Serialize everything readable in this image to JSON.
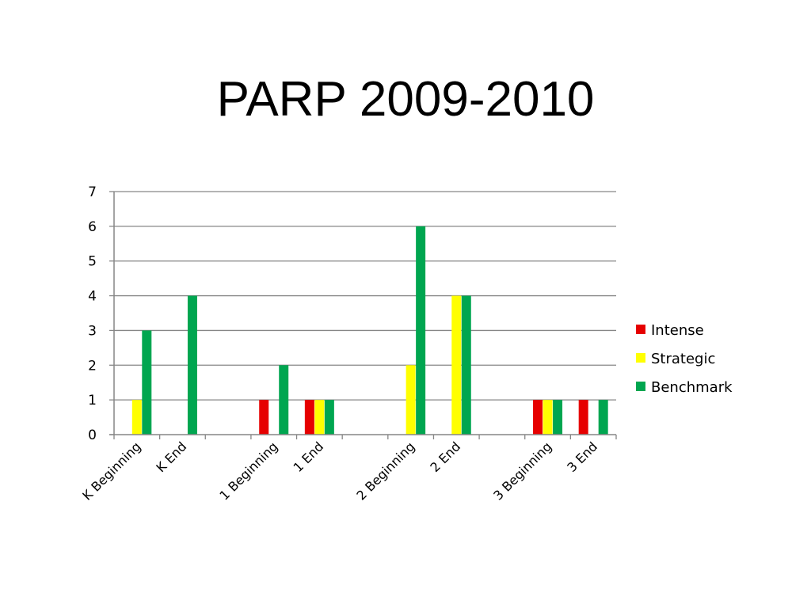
{
  "slide": {
    "title": "PARP 2009-2010"
  },
  "chart_data": {
    "type": "bar",
    "categories": [
      "K Beginning",
      "K End",
      "",
      "1 Beginning",
      "1 End",
      "",
      "2 Beginning",
      "2 End",
      "",
      "3 Beginning",
      "3 End"
    ],
    "series": [
      {
        "name": "Intense",
        "color": "#e60000",
        "values": [
          0,
          0,
          0,
          1,
          1,
          0,
          0,
          0,
          0,
          1,
          1
        ]
      },
      {
        "name": "Strategic",
        "color": "#ffff00",
        "values": [
          1,
          0,
          0,
          0,
          1,
          0,
          2,
          4,
          0,
          1,
          0
        ]
      },
      {
        "name": "Benchmark",
        "color": "#00a650",
        "values": [
          3,
          4,
          0,
          2,
          1,
          0,
          6,
          4,
          0,
          1,
          1
        ]
      }
    ],
    "ylim": [
      0,
      7
    ],
    "yticks": [
      "0",
      "1",
      "2",
      "3",
      "4",
      "5",
      "6",
      "7"
    ],
    "grid": true,
    "legend_position": "right"
  }
}
